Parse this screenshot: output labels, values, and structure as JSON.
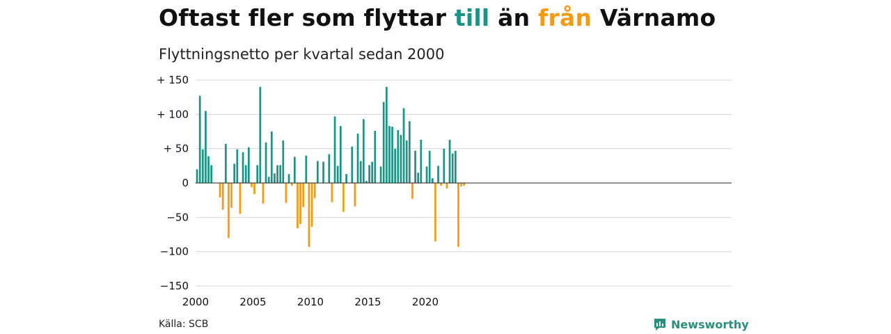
{
  "title": {
    "part1": "Oftast fler som flyttar ",
    "part2": "till",
    "part3": " än ",
    "part4": "från",
    "part5": " Värnamo"
  },
  "subtitle": "Flyttningsnetto per kvartal sedan 2000",
  "source": "Källa: SCB",
  "brand": "Newsworthy",
  "colors": {
    "positive": "#1a9485",
    "negative": "#f39c12",
    "title_till": "#1a9485",
    "title_fran": "#f39c12"
  },
  "chart_data": {
    "type": "bar",
    "ylim": [
      -150,
      150
    ],
    "y_ticks": [
      150,
      100,
      50,
      0,
      -50,
      -100,
      -150
    ],
    "y_tick_labels": [
      "+ 150",
      "+ 100",
      "+  50",
      "0",
      "−50",
      "−100",
      "−150"
    ],
    "x_ticks": [
      2000,
      2005,
      2010,
      2015,
      2020
    ],
    "x_tick_labels": [
      "2000",
      "2005",
      "2010",
      "2015",
      "2020"
    ],
    "grid": true,
    "start_period": "2000Q1",
    "series": [
      {
        "values": [
          20,
          127,
          49,
          105,
          39,
          26,
          0,
          0,
          -21,
          -39,
          57,
          -80,
          -36,
          28,
          49,
          -45,
          45,
          26,
          52,
          -6,
          -16,
          26,
          140,
          -30,
          59,
          9,
          75,
          14,
          26,
          26,
          62,
          -29,
          13,
          -4,
          38,
          -66,
          -60,
          -35,
          40,
          -93,
          -64,
          -22,
          32,
          0,
          31,
          0,
          42,
          -28,
          97,
          25,
          83,
          -42,
          13,
          0,
          53,
          -34,
          72,
          32,
          93,
          3,
          26,
          31,
          76,
          0,
          24,
          118,
          140,
          83,
          82,
          50,
          77,
          70,
          109,
          62,
          90,
          -23,
          47,
          15,
          63,
          0,
          24,
          47,
          7,
          -85,
          25,
          -4,
          50,
          -8,
          63,
          43,
          47,
          -93,
          -5,
          -4
        ]
      }
    ]
  }
}
